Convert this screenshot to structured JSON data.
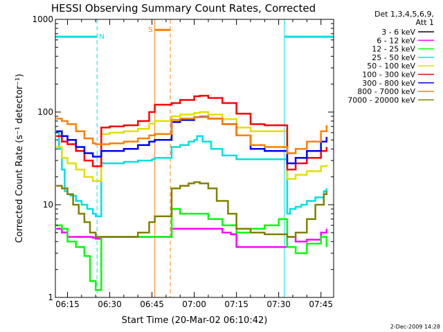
{
  "chart_data": {
    "type": "line",
    "title": "HESSI Observing Summary Count Rates, Corrected",
    "xlabel": "Start Time (20-Mar-02 06:10:42)",
    "ylabel": "Corrected Count Rate (s⁻¹ detector⁻¹)",
    "ylog": true,
    "ylim": [
      1,
      1000
    ],
    "xlim": [
      "06:10:42",
      "07:49:30"
    ],
    "yticks": [
      {
        "value": 1,
        "label": "1"
      },
      {
        "value": 10,
        "label": "10"
      },
      {
        "value": 100,
        "label": "100"
      },
      {
        "value": 1000,
        "label": "1000"
      }
    ],
    "xticks": [
      {
        "value": "06:15",
        "label": "06:15"
      },
      {
        "value": "06:30",
        "label": "06:30"
      },
      {
        "value": "06:45",
        "label": "06:45"
      },
      {
        "value": "07:00",
        "label": "07:00"
      },
      {
        "value": "07:15",
        "label": "07:15"
      },
      {
        "value": "07:30",
        "label": "07:30"
      },
      {
        "value": "07:45",
        "label": "07:45"
      }
    ],
    "legend": {
      "placement": "right",
      "header": [
        "Det 1,3,4,5,6,9,",
        "Att 1"
      ]
    },
    "timestamp": "2-Dec-2009 14:28",
    "events": [
      {
        "type": "night",
        "label": "N",
        "color": "#00e0e0",
        "start": "06:10:42",
        "end": "06:25:30",
        "level": 650
      },
      {
        "type": "night",
        "label": "",
        "color": "#00e0e0",
        "start": "07:32:00",
        "end": "07:49:30",
        "level": 650
      },
      {
        "type": "saa",
        "label": "S",
        "color": "#ff7f00",
        "start": "06:46:00",
        "end": "06:51:30",
        "level": 770
      }
    ],
    "series": [
      {
        "name": "3 - 6 keV",
        "color": "#000000",
        "x": [],
        "y": []
      },
      {
        "name": "6 - 12 keV",
        "color": "#ff00ff",
        "x": [
          "06:11",
          "06:13",
          "06:15",
          "06:18",
          "06:21",
          "06:24",
          "06:25",
          "06:27",
          "06:30",
          "06:35",
          "06:40",
          "06:44",
          "06:46",
          "06:52",
          "06:55",
          "07:00",
          "07:05",
          "07:10",
          "07:13",
          "07:15",
          "07:20",
          "07:25",
          "07:30",
          "07:33",
          "07:36",
          "07:40",
          "07:45",
          "07:47"
        ],
        "y": [
          5.5,
          5,
          4.5,
          4.5,
          4.5,
          4.4,
          4.3,
          4.5,
          4.5,
          4.5,
          4.5,
          4.5,
          4.5,
          5.5,
          5.5,
          5.5,
          5.5,
          5,
          4.8,
          3.5,
          3.5,
          3.5,
          3.5,
          4.5,
          4,
          4.2,
          5,
          5.5
        ]
      },
      {
        "name": "12 - 25 keV",
        "color": "#00ff00",
        "x": [
          "06:11",
          "06:13",
          "06:15",
          "06:18",
          "06:21",
          "06:23",
          "06:25",
          "06:27",
          "06:30",
          "06:35",
          "06:40",
          "06:44",
          "06:46",
          "06:52",
          "06:55",
          "07:00",
          "07:05",
          "07:10",
          "07:15",
          "07:20",
          "07:25",
          "07:30",
          "07:33",
          "07:36",
          "07:40",
          "07:45",
          "07:47"
        ],
        "y": [
          6,
          5.5,
          4,
          3.5,
          2.8,
          1.5,
          1.2,
          4.5,
          4.5,
          4.5,
          4.5,
          4.5,
          4.5,
          9,
          8,
          8,
          7,
          6,
          5,
          5.5,
          6,
          7,
          3.5,
          3,
          3.8,
          4.5,
          3.5
        ]
      },
      {
        "name": "25 - 50 keV",
        "color": "#00e0e0",
        "x": [
          "06:11",
          "06:12",
          "06:13",
          "06:14",
          "06:15",
          "06:16",
          "06:18",
          "06:20",
          "06:22",
          "06:24",
          "06:25",
          "06:27",
          "06:30",
          "06:35",
          "06:40",
          "06:45",
          "06:46",
          "06:52",
          "06:55",
          "06:58",
          "07:00",
          "07:01",
          "07:03",
          "07:06",
          "07:10",
          "07:15",
          "07:20",
          "07:25",
          "07:31",
          "07:33",
          "07:34",
          "07:36",
          "07:38",
          "07:40",
          "07:43",
          "07:46",
          "07:47"
        ],
        "y": [
          60,
          40,
          24,
          14,
          13,
          12.5,
          11,
          10,
          9,
          8,
          7.5,
          28,
          28,
          29,
          30,
          31,
          32,
          42,
          44,
          48,
          50,
          55,
          48,
          40,
          34,
          31,
          31,
          31,
          31,
          8,
          9,
          9.5,
          10,
          11,
          12,
          14,
          15
        ]
      },
      {
        "name": "50 - 100 keV",
        "color": "#e0e000",
        "x": [
          "06:11",
          "06:13",
          "06:15",
          "06:18",
          "06:21",
          "06:24",
          "06:25",
          "06:27",
          "06:30",
          "06:35",
          "06:40",
          "06:44",
          "06:46",
          "06:52",
          "06:55",
          "07:00",
          "07:02",
          "07:05",
          "07:10",
          "07:15",
          "07:20",
          "07:25",
          "07:31",
          "07:33",
          "07:36",
          "07:40",
          "07:45",
          "07:47"
        ],
        "y": [
          42,
          32,
          28,
          24,
          20,
          18,
          18,
          58,
          60,
          62,
          66,
          75,
          80,
          90,
          94,
          98,
          100,
          94,
          84,
          68,
          62,
          62,
          62,
          19,
          21,
          23,
          26,
          27
        ]
      },
      {
        "name": "100 - 300 keV",
        "color": "#ff0000",
        "x": [
          "06:11",
          "06:13",
          "06:15",
          "06:18",
          "06:21",
          "06:24",
          "06:25",
          "06:27",
          "06:30",
          "06:35",
          "06:40",
          "06:44",
          "06:46",
          "06:52",
          "06:55",
          "07:00",
          "07:02",
          "07:05",
          "07:10",
          "07:15",
          "07:20",
          "07:25",
          "07:31",
          "07:33",
          "07:36",
          "07:40",
          "07:45",
          "07:47"
        ],
        "y": [
          55,
          48,
          45,
          38,
          30,
          26,
          26,
          68,
          70,
          72,
          80,
          100,
          120,
          125,
          135,
          148,
          150,
          142,
          125,
          96,
          74,
          72,
          72,
          24,
          28,
          32,
          38,
          42
        ]
      },
      {
        "name": "300 - 800 keV",
        "color": "#0000ff",
        "x": [
          "06:11",
          "06:13",
          "06:15",
          "06:18",
          "06:21",
          "06:24",
          "06:25",
          "06:27",
          "06:30",
          "06:35",
          "06:40",
          "06:44",
          "06:46",
          "06:52",
          "06:55",
          "07:00",
          "07:02",
          "07:05",
          "07:10",
          "07:15",
          "07:20",
          "07:25",
          "07:31",
          "07:33",
          "07:36",
          "07:40",
          "07:45",
          "07:47"
        ],
        "y": [
          62,
          55,
          50,
          42,
          36,
          33,
          33,
          38,
          38,
          40,
          44,
          48,
          50,
          78,
          82,
          88,
          89,
          85,
          74,
          56,
          40,
          38,
          38,
          28,
          32,
          38,
          48,
          54
        ]
      },
      {
        "name": "800 - 7000 keV",
        "color": "#ff7f00",
        "x": [
          "06:11",
          "06:13",
          "06:15",
          "06:18",
          "06:21",
          "06:24",
          "06:25",
          "06:27",
          "06:30",
          "06:35",
          "06:40",
          "06:44",
          "06:46",
          "06:52",
          "06:55",
          "07:00",
          "07:02",
          "07:05",
          "07:10",
          "07:15",
          "07:20",
          "07:25",
          "07:31",
          "07:33",
          "07:36",
          "07:40",
          "07:45",
          "07:47"
        ],
        "y": [
          85,
          80,
          74,
          62,
          52,
          46,
          45,
          45,
          46,
          48,
          52,
          56,
          58,
          82,
          85,
          88,
          88,
          85,
          74,
          56,
          44,
          42,
          42,
          36,
          40,
          48,
          62,
          72
        ]
      },
      {
        "name": "7000 - 20000 keV",
        "color": "#808000",
        "x": [
          "06:11",
          "06:13",
          "06:15",
          "06:17",
          "06:19",
          "06:21",
          "06:23",
          "06:25",
          "06:27",
          "06:30",
          "06:35",
          "06:40",
          "06:44",
          "06:46",
          "06:52",
          "06:55",
          "06:58",
          "07:00",
          "07:02",
          "07:05",
          "07:08",
          "07:12",
          "07:15",
          "07:20",
          "07:25",
          "07:30",
          "07:33",
          "07:36",
          "07:40",
          "07:43",
          "07:46",
          "07:47"
        ],
        "y": [
          16,
          15,
          13,
          10,
          8,
          6.5,
          5,
          4.5,
          4.5,
          4.5,
          4.5,
          5,
          6.5,
          7.5,
          15,
          16,
          17,
          17.5,
          17,
          15,
          11,
          8,
          5.5,
          5,
          4.8,
          4.8,
          4.5,
          5,
          7,
          10,
          13,
          14
        ]
      }
    ]
  }
}
